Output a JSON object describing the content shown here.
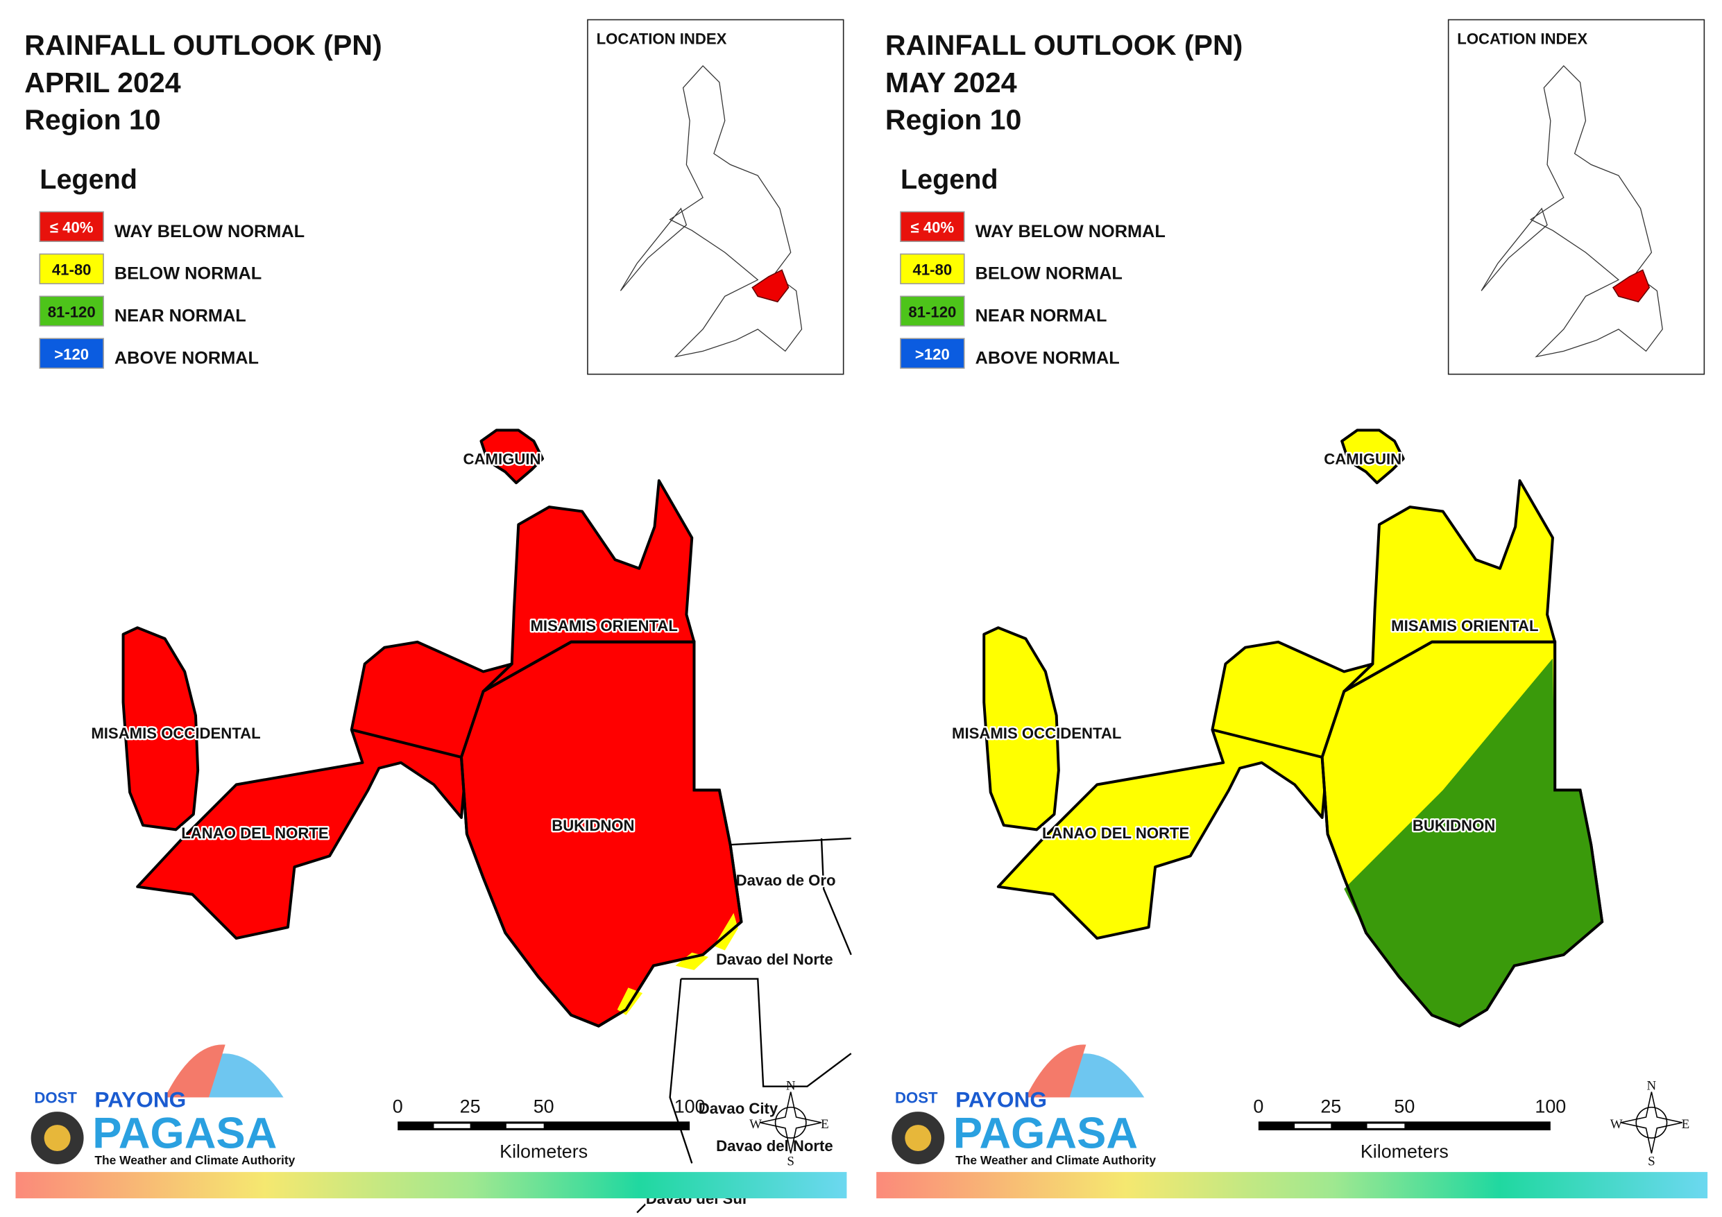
{
  "panels": [
    {
      "title": [
        "RAINFALL OUTLOOK (PN)",
        "APRIL 2024",
        "Region 10"
      ],
      "legend": {
        "title": "Legend",
        "items": [
          {
            "label": "≤ 40%",
            "text": "WAY BELOW NORMAL",
            "color": "#e8120c"
          },
          {
            "label": "41-80",
            "text": "BELOW NORMAL",
            "color": "#ffff00"
          },
          {
            "label": "81-120",
            "text": "NEAR NORMAL",
            "color": "#4dc41a"
          },
          {
            "label": ">120",
            "text": "ABOVE NORMAL",
            "color": "#0b5ce0"
          }
        ]
      },
      "location_index": "LOCATION INDEX",
      "provinces": [
        {
          "name": "CAMIGUIN",
          "colors": [
            "#ff0000"
          ]
        },
        {
          "name": "MISAMIS ORIENTAL",
          "colors": [
            "#ff0000"
          ]
        },
        {
          "name": "MISAMIS OCCIDENTAL",
          "colors": [
            "#ff0000"
          ]
        },
        {
          "name": "LANAO DEL NORTE",
          "colors": [
            "#ff0000"
          ]
        },
        {
          "name": "BUKIDNON",
          "colors": [
            "#ff0000",
            "#ffff00"
          ]
        }
      ],
      "neighbors": [
        "Davao de Oro",
        "Davao del Norte",
        "Davao City",
        "Davao del Norte",
        "Davao del Sur"
      ],
      "scale": {
        "ticks": [
          "0",
          "25",
          "50",
          "100"
        ],
        "unit": "Kilometers"
      },
      "compass": [
        "N",
        "E",
        "S",
        "W"
      ],
      "logo": {
        "agency": "DOST",
        "line1": "PAYONG",
        "line2": "PAGASA",
        "tagline": "The Weather and Climate Authority"
      }
    },
    {
      "title": [
        "RAINFALL OUTLOOK (PN)",
        "MAY 2024",
        "Region 10"
      ],
      "legend": {
        "title": "Legend",
        "items": [
          {
            "label": "≤ 40%",
            "text": "WAY BELOW NORMAL",
            "color": "#e8120c"
          },
          {
            "label": "41-80",
            "text": "BELOW NORMAL",
            "color": "#ffff00"
          },
          {
            "label": "81-120",
            "text": "NEAR NORMAL",
            "color": "#4dc41a"
          },
          {
            "label": ">120",
            "text": "ABOVE NORMAL",
            "color": "#0b5ce0"
          }
        ]
      },
      "location_index": "LOCATION INDEX",
      "provinces": [
        {
          "name": "CAMIGUIN",
          "colors": [
            "#ffff00"
          ]
        },
        {
          "name": "MISAMIS ORIENTAL",
          "colors": [
            "#ffff00"
          ]
        },
        {
          "name": "MISAMIS OCCIDENTAL",
          "colors": [
            "#ffff00"
          ]
        },
        {
          "name": "LANAO DEL NORTE",
          "colors": [
            "#ffff00"
          ]
        },
        {
          "name": "BUKIDNON",
          "colors": [
            "#ffff00",
            "#3a9a0b"
          ]
        }
      ],
      "scale": {
        "ticks": [
          "0",
          "25",
          "50",
          "100"
        ],
        "unit": "Kilometers"
      },
      "compass": [
        "N",
        "E",
        "S",
        "W"
      ],
      "logo": {
        "agency": "DOST",
        "line1": "PAYONG",
        "line2": "PAGASA",
        "tagline": "The Weather and Climate Authority"
      }
    }
  ]
}
